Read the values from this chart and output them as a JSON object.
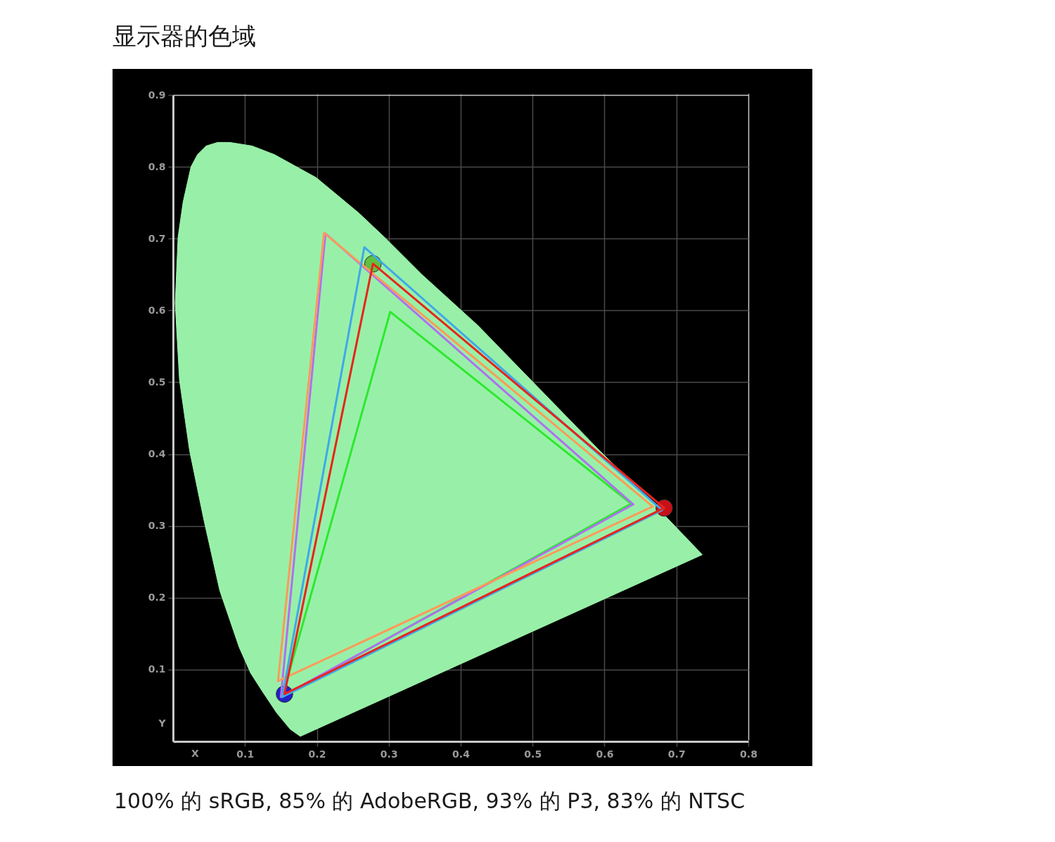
{
  "chart_data": {
    "type": "line",
    "title": "显示器的色域",
    "xlabel": "X",
    "ylabel": "Y",
    "xlim": [
      0,
      0.8
    ],
    "ylim": [
      0,
      0.9
    ],
    "xticks": [
      0.1,
      0.2,
      0.3,
      0.4,
      0.5,
      0.6,
      0.7,
      0.8
    ],
    "yticks": [
      0.1,
      0.2,
      0.3,
      0.4,
      0.5,
      0.6,
      0.7,
      0.8,
      0.9
    ],
    "grid": true,
    "line_style": "solid",
    "annotations": [
      "100% 的 sRGB, 85% 的 AdobeRGB, 93% 的 P3, 83% 的 NTSC"
    ],
    "series": [
      {
        "type": "area",
        "color": "#98f0a8",
        "x": [
          0.177,
          0.163,
          0.144,
          0.124,
          0.108,
          0.092,
          0.065,
          0.043,
          0.023,
          0.009,
          0.003,
          0.007,
          0.014,
          0.025,
          0.034,
          0.046,
          0.062,
          0.079,
          0.11,
          0.141,
          0.199,
          0.258,
          0.294,
          0.346,
          0.424,
          0.593,
          0.669,
          0.736,
          0.177
        ],
        "values": [
          0.007,
          0.017,
          0.04,
          0.07,
          0.095,
          0.131,
          0.21,
          0.308,
          0.405,
          0.503,
          0.61,
          0.702,
          0.751,
          0.8,
          0.817,
          0.829,
          0.834,
          0.834,
          0.829,
          0.817,
          0.785,
          0.736,
          0.702,
          0.65,
          0.579,
          0.405,
          0.33,
          0.26,
          0.007
        ]
      },
      {
        "type": "scatter",
        "marker": "circle",
        "x": [
          0.278,
          0.683,
          0.155
        ],
        "values": [
          0.665,
          0.325,
          0.066
        ],
        "colors": [
          "#60c040",
          "#c81018",
          "#2020c8"
        ]
      },
      {
        "color": "#2ee82e",
        "x": [
          0.152,
          0.302,
          0.637
        ],
        "values": [
          0.062,
          0.598,
          0.331
        ]
      },
      {
        "color": "#2ee82e",
        "x": [
          0.152,
          0.637
        ],
        "values": [
          0.062,
          0.331
        ]
      },
      {
        "color": "#b070f0",
        "x": [
          0.15,
          0.212,
          0.64
        ],
        "values": [
          0.062,
          0.707,
          0.33
        ]
      },
      {
        "color": "#b070f0",
        "x": [
          0.15,
          0.64
        ],
        "values": [
          0.062,
          0.33
        ]
      },
      {
        "color": "#ff9a5a",
        "x": [
          0.146,
          0.21,
          0.667
        ],
        "values": [
          0.084,
          0.708,
          0.327
        ]
      },
      {
        "color": "#ff9a5a",
        "x": [
          0.146,
          0.667
        ],
        "values": [
          0.084,
          0.327
        ]
      },
      {
        "color": "#40a8e8",
        "x": [
          0.152,
          0.266,
          0.68
        ],
        "values": [
          0.062,
          0.688,
          0.322
        ]
      },
      {
        "color": "#40a8e8",
        "x": [
          0.152,
          0.68
        ],
        "values": [
          0.062,
          0.322
        ]
      },
      {
        "color": "#e8241c",
        "x": [
          0.155,
          0.278,
          0.683
        ],
        "values": [
          0.066,
          0.665,
          0.325
        ]
      },
      {
        "color": "#e8241c",
        "x": [
          0.155,
          0.683
        ],
        "values": [
          0.066,
          0.325
        ]
      }
    ]
  }
}
